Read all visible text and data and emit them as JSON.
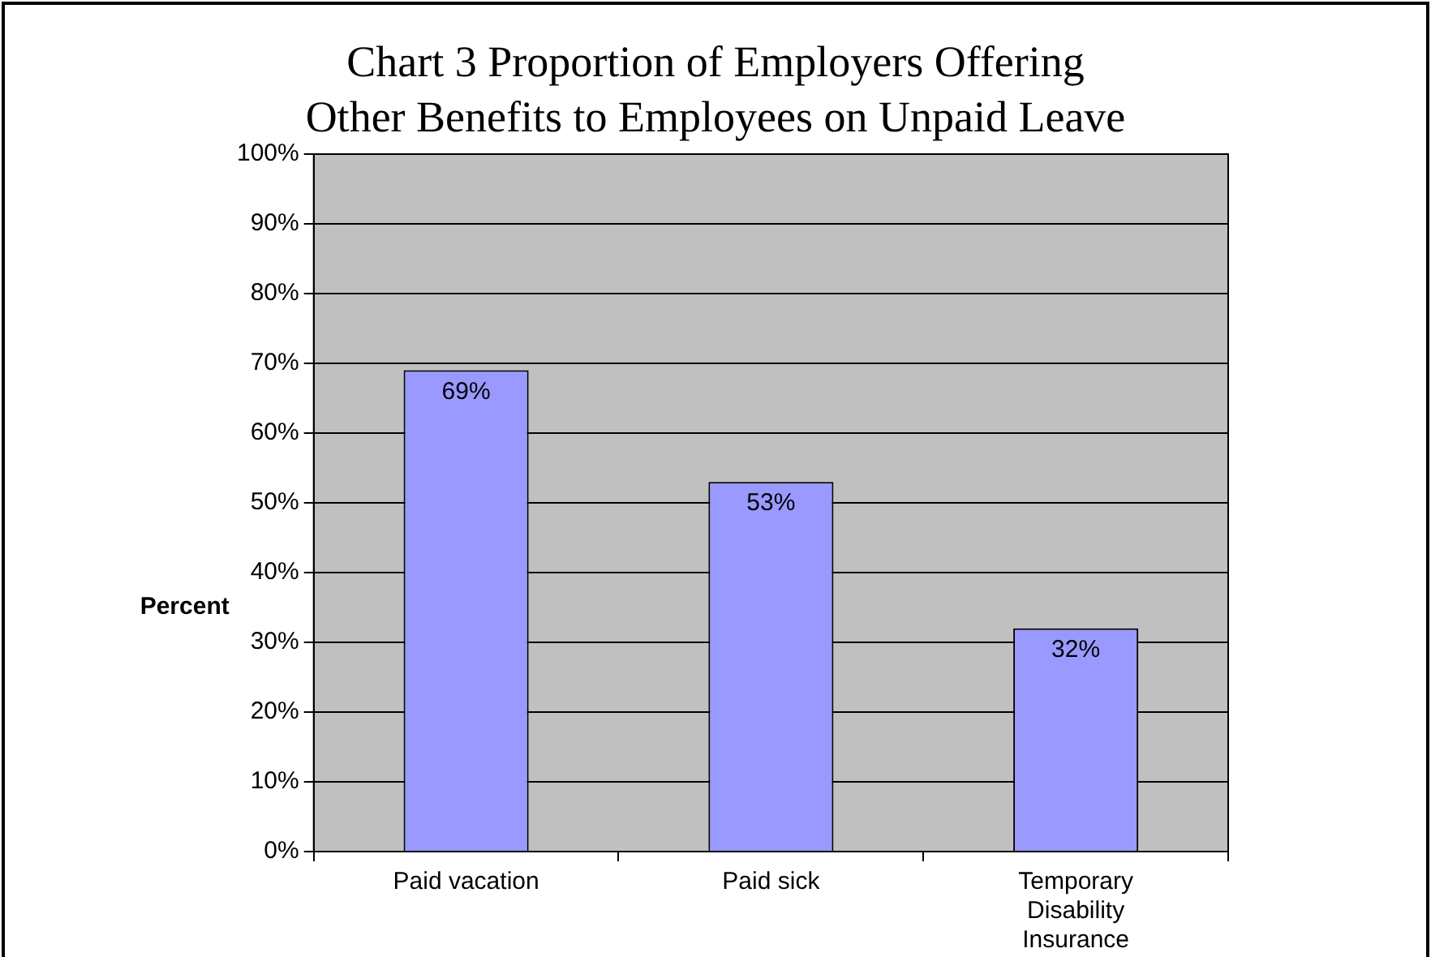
{
  "chart_data": {
    "type": "bar",
    "title": "Chart 3 Proportion of Employers Offering Other Benefits to Employees on Unpaid Leave",
    "ylabel": "Percent",
    "categories": [
      "Paid vacation",
      "Paid sick",
      "Temporary Disability Insurance"
    ],
    "values": [
      69,
      53,
      32
    ],
    "value_labels": [
      "69%",
      "53%",
      "32%"
    ],
    "color": "#9999ff",
    "ylim": [
      0,
      100
    ],
    "yticks": [
      {
        "value": 0,
        "label": "0%"
      },
      {
        "value": 10,
        "label": "10%"
      },
      {
        "value": 20,
        "label": "20%"
      },
      {
        "value": 30,
        "label": "30%"
      },
      {
        "value": 40,
        "label": "40%"
      },
      {
        "value": 50,
        "label": "50%"
      },
      {
        "value": 60,
        "label": "60%"
      },
      {
        "value": 70,
        "label": "70%"
      },
      {
        "value": 80,
        "label": "80%"
      },
      {
        "value": 90,
        "label": "90%"
      },
      {
        "value": 100,
        "label": "100%"
      }
    ],
    "grid": "y",
    "legend": false
  }
}
